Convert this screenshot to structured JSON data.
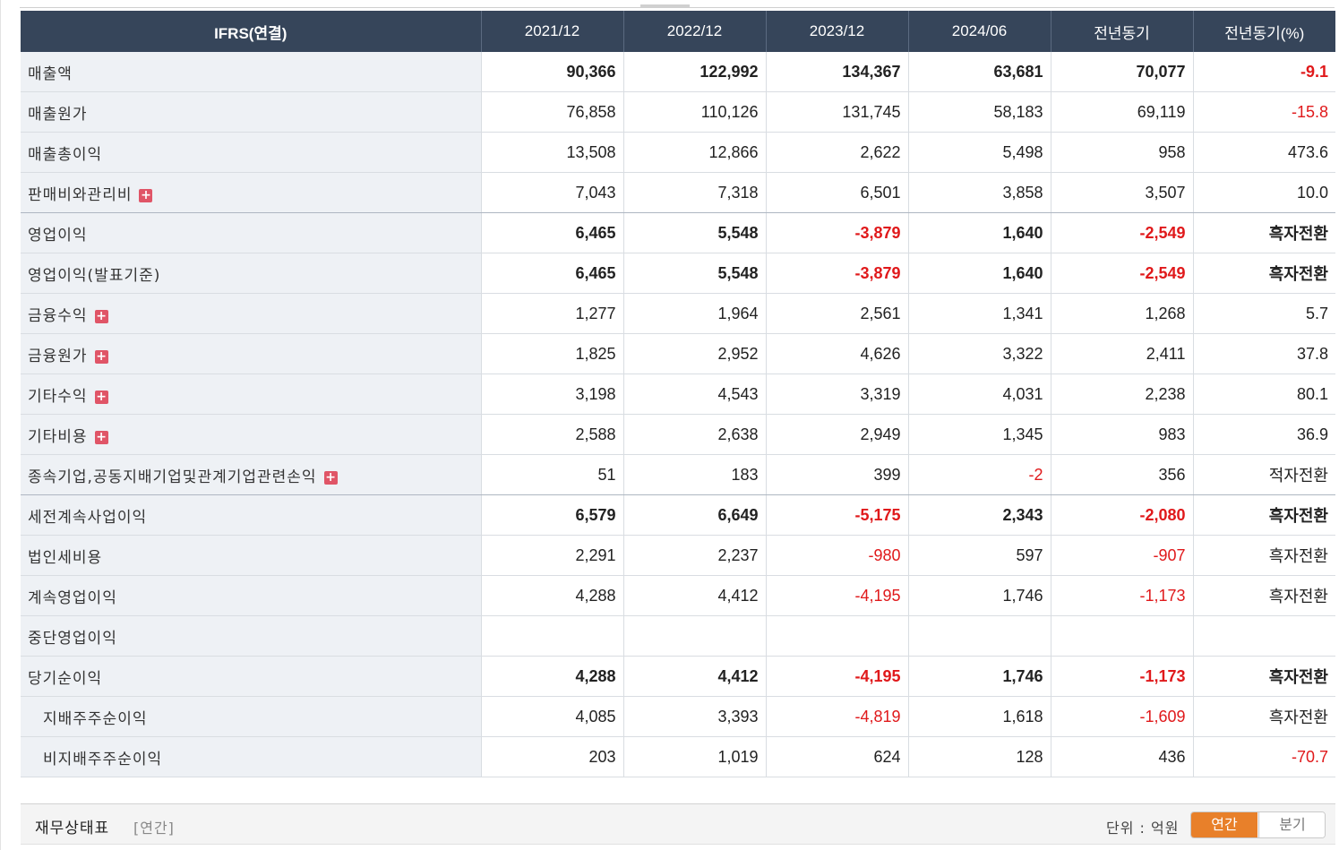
{
  "table": {
    "header": [
      "IFRS(연결)",
      "2021/12",
      "2022/12",
      "2023/12",
      "2024/06",
      "전년동기",
      "전년동기(%)"
    ],
    "rows": [
      {
        "label": "매출액",
        "values": [
          "90,366",
          "122,992",
          "134,367",
          "63,681",
          "70,077",
          "-9.1"
        ]
      },
      {
        "label": "매출원가",
        "values": [
          "76,858",
          "110,126",
          "131,745",
          "58,183",
          "69,119",
          "-15.8"
        ]
      },
      {
        "label": "매출총이익",
        "values": [
          "13,508",
          "12,866",
          "2,622",
          "5,498",
          "958",
          "473.6"
        ]
      },
      {
        "label": "판매비와관리비",
        "values": [
          "7,043",
          "7,318",
          "6,501",
          "3,858",
          "3,507",
          "10.0"
        ]
      },
      {
        "label": "영업이익",
        "values": [
          "6,465",
          "5,548",
          "-3,879",
          "1,640",
          "-2,549",
          "흑자전환"
        ]
      },
      {
        "label": "영업이익(발표기준)",
        "values": [
          "6,465",
          "5,548",
          "-3,879",
          "1,640",
          "-2,549",
          "흑자전환"
        ]
      },
      {
        "label": "금융수익",
        "values": [
          "1,277",
          "1,964",
          "2,561",
          "1,341",
          "1,268",
          "5.7"
        ]
      },
      {
        "label": "금융원가",
        "values": [
          "1,825",
          "2,952",
          "4,626",
          "3,322",
          "2,411",
          "37.8"
        ]
      },
      {
        "label": "기타수익",
        "values": [
          "3,198",
          "4,543",
          "3,319",
          "4,031",
          "2,238",
          "80.1"
        ]
      },
      {
        "label": "기타비용",
        "values": [
          "2,588",
          "2,638",
          "2,949",
          "1,345",
          "983",
          "36.9"
        ]
      },
      {
        "label": "종속기업,공동지배기업및관계기업관련손익",
        "values": [
          "51",
          "183",
          "399",
          "-2",
          "356",
          "적자전환"
        ]
      },
      {
        "label": "세전계속사업이익",
        "values": [
          "6,579",
          "6,649",
          "-5,175",
          "2,343",
          "-2,080",
          "흑자전환"
        ]
      },
      {
        "label": "법인세비용",
        "values": [
          "2,291",
          "2,237",
          "-980",
          "597",
          "-907",
          "흑자전환"
        ]
      },
      {
        "label": "계속영업이익",
        "values": [
          "4,288",
          "4,412",
          "-4,195",
          "1,746",
          "-1,173",
          "흑자전환"
        ]
      },
      {
        "label": "중단영업이익",
        "values": [
          "",
          "",
          "",
          "",
          "",
          ""
        ]
      },
      {
        "label": "당기순이익",
        "values": [
          "4,288",
          "4,412",
          "-4,195",
          "1,746",
          "-1,173",
          "흑자전환"
        ]
      },
      {
        "label": "지배주주순이익",
        "values": [
          "4,085",
          "3,393",
          "-4,819",
          "1,618",
          "-1,609",
          "흑자전환"
        ]
      },
      {
        "label": "비지배주주순이익",
        "values": [
          "203",
          "1,019",
          "624",
          "128",
          "436",
          "-70.7"
        ]
      }
    ]
  },
  "footer": {
    "title": "재무상태표",
    "subtitle": "[연간]",
    "unit": "단위 : 억원",
    "toggle_annual": "연간",
    "toggle_quarter": "분기"
  },
  "colors": {
    "header_bg": "#36455a",
    "label_bg": "#eef1f5",
    "negative": "#e0191b",
    "toggle_active": "#e8802a",
    "expand_icon": "#e05567"
  }
}
